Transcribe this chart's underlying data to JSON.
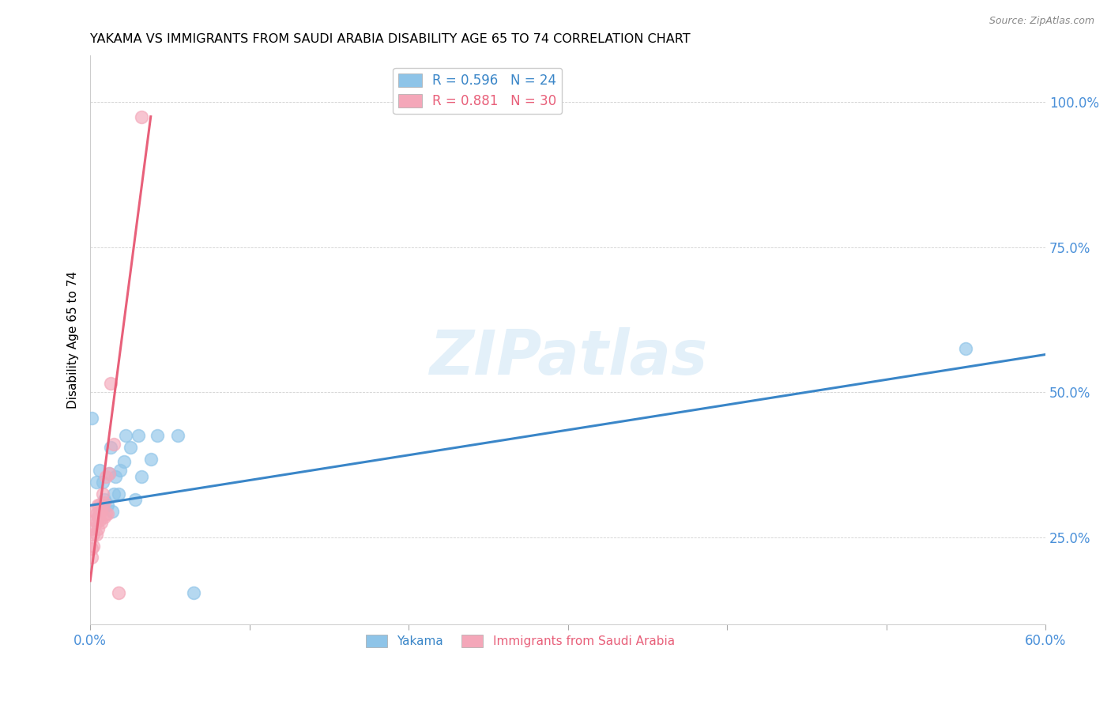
{
  "title": "YAKAMA VS IMMIGRANTS FROM SAUDI ARABIA DISABILITY AGE 65 TO 74 CORRELATION CHART",
  "source": "Source: ZipAtlas.com",
  "ylabel": "Disability Age 65 to 74",
  "xlim": [
    0.0,
    0.6
  ],
  "ylim": [
    0.1,
    1.08
  ],
  "yticks": [
    0.25,
    0.5,
    0.75,
    1.0
  ],
  "ytick_labels": [
    "25.0%",
    "50.0%",
    "75.0%",
    "100.0%"
  ],
  "xticks": [
    0.0,
    0.1,
    0.2,
    0.3,
    0.4,
    0.5,
    0.6
  ],
  "xtick_labels": [
    "0.0%",
    "",
    "",
    "",
    "",
    "",
    "60.0%"
  ],
  "blue_color": "#8ec4e8",
  "pink_color": "#f4a7b9",
  "blue_line_color": "#3a86c8",
  "pink_line_color": "#e8607a",
  "axis_color": "#4a90d9",
  "watermark_color": "#cde4f5",
  "yakama_points_x": [
    0.001,
    0.004,
    0.006,
    0.008,
    0.009,
    0.011,
    0.012,
    0.013,
    0.014,
    0.015,
    0.016,
    0.018,
    0.019,
    0.021,
    0.022,
    0.025,
    0.028,
    0.03,
    0.032,
    0.038,
    0.042,
    0.055,
    0.065,
    0.55
  ],
  "yakama_points_y": [
    0.455,
    0.345,
    0.365,
    0.345,
    0.315,
    0.305,
    0.36,
    0.405,
    0.295,
    0.325,
    0.355,
    0.325,
    0.365,
    0.38,
    0.425,
    0.405,
    0.315,
    0.425,
    0.355,
    0.385,
    0.425,
    0.425,
    0.155,
    0.575
  ],
  "saudi_points_x": [
    0.001,
    0.001,
    0.001,
    0.002,
    0.002,
    0.003,
    0.003,
    0.004,
    0.004,
    0.004,
    0.005,
    0.005,
    0.005,
    0.006,
    0.006,
    0.006,
    0.007,
    0.007,
    0.008,
    0.008,
    0.009,
    0.009,
    0.01,
    0.01,
    0.011,
    0.012,
    0.013,
    0.015,
    0.018,
    0.032
  ],
  "saudi_points_y": [
    0.215,
    0.23,
    0.265,
    0.235,
    0.255,
    0.28,
    0.295,
    0.255,
    0.275,
    0.29,
    0.265,
    0.285,
    0.305,
    0.28,
    0.295,
    0.305,
    0.275,
    0.295,
    0.305,
    0.325,
    0.285,
    0.31,
    0.355,
    0.29,
    0.29,
    0.36,
    0.515,
    0.41,
    0.155,
    0.975
  ],
  "blue_trendline_x": [
    0.0,
    0.6
  ],
  "blue_trendline_y": [
    0.305,
    0.565
  ],
  "pink_trendline_x": [
    0.0,
    0.038
  ],
  "pink_trendline_y": [
    0.175,
    0.975
  ]
}
